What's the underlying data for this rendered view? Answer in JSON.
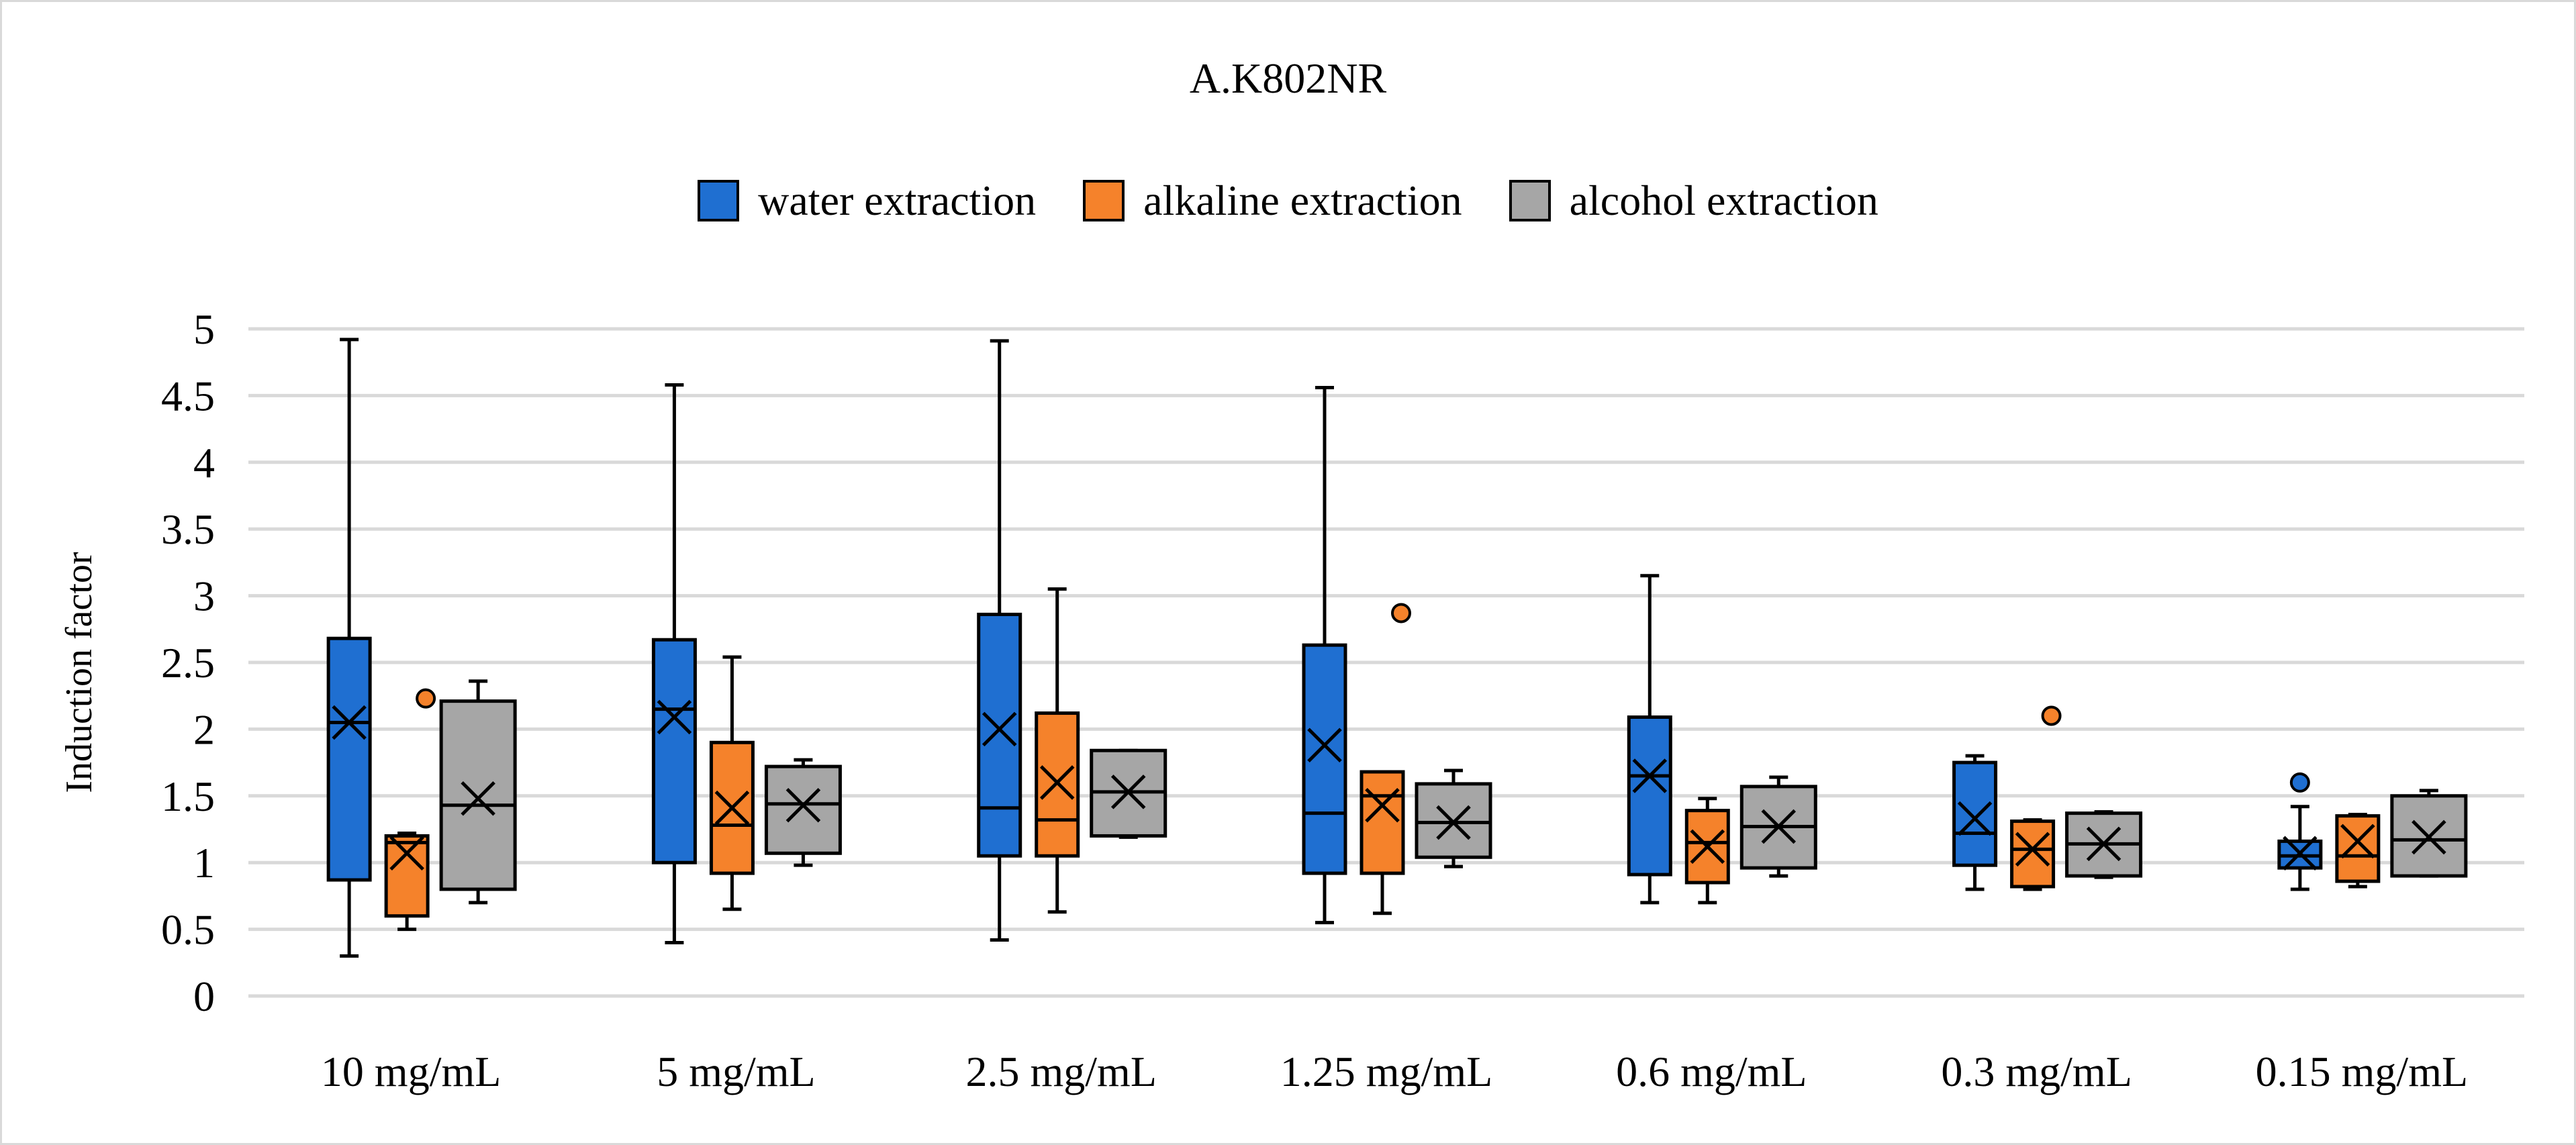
{
  "chart_data": {
    "type": "boxplot",
    "title": "A.K802NR",
    "xlabel": "",
    "ylabel": "Induction factor",
    "ylim": [
      0,
      5
    ],
    "yticks": [
      "0",
      "0.5",
      "1",
      "1.5",
      "2",
      "2.5",
      "3",
      "3.5",
      "4",
      "4.5",
      "5"
    ],
    "grid": true,
    "legend_position": "top-center",
    "categories": [
      "10 mg/mL",
      "5 mg/mL",
      "2.5 mg/mL",
      "1.25 mg/mL",
      "0.6 mg/mL",
      "0.3 mg/mL",
      "0.15 mg/mL"
    ],
    "series": [
      {
        "name": "water extraction",
        "color": "#1f6fd1",
        "boxes": [
          {
            "min": 0.3,
            "q1": 0.87,
            "median": 2.05,
            "q3": 2.68,
            "max": 4.92,
            "mean": 2.05,
            "outliers": []
          },
          {
            "min": 0.4,
            "q1": 1.0,
            "median": 2.15,
            "q3": 2.67,
            "max": 4.58,
            "mean": 2.09,
            "outliers": []
          },
          {
            "min": 0.42,
            "q1": 1.05,
            "median": 1.41,
            "q3": 2.86,
            "max": 4.91,
            "mean": 2.0,
            "outliers": []
          },
          {
            "min": 0.55,
            "q1": 0.92,
            "median": 1.37,
            "q3": 2.63,
            "max": 4.56,
            "mean": 1.88,
            "outliers": []
          },
          {
            "min": 0.7,
            "q1": 0.91,
            "median": 1.65,
            "q3": 2.09,
            "max": 3.15,
            "mean": 1.65,
            "outliers": []
          },
          {
            "min": 0.8,
            "q1": 0.98,
            "median": 1.22,
            "q3": 1.75,
            "max": 1.8,
            "mean": 1.33,
            "outliers": []
          },
          {
            "min": 0.8,
            "q1": 0.96,
            "median": 1.05,
            "q3": 1.16,
            "max": 1.42,
            "mean": 1.07,
            "outliers": [
              1.6
            ]
          }
        ]
      },
      {
        "name": "alkaline extraction",
        "color": "#f5822b",
        "boxes": [
          {
            "min": 0.5,
            "q1": 0.6,
            "median": 1.15,
            "q3": 1.2,
            "max": 1.22,
            "mean": 1.07,
            "outliers": [
              2.23
            ]
          },
          {
            "min": 0.65,
            "q1": 0.92,
            "median": 1.28,
            "q3": 1.9,
            "max": 2.54,
            "mean": 1.41,
            "outliers": []
          },
          {
            "min": 0.63,
            "q1": 1.05,
            "median": 1.32,
            "q3": 2.12,
            "max": 3.05,
            "mean": 1.6,
            "outliers": []
          },
          {
            "min": 0.62,
            "q1": 0.92,
            "median": 1.5,
            "q3": 1.68,
            "max": 1.68,
            "mean": 1.43,
            "outliers": [
              2.87
            ]
          },
          {
            "min": 0.7,
            "q1": 0.85,
            "median": 1.15,
            "q3": 1.39,
            "max": 1.48,
            "mean": 1.12,
            "outliers": []
          },
          {
            "min": 0.8,
            "q1": 0.82,
            "median": 1.1,
            "q3": 1.31,
            "max": 1.32,
            "mean": 1.1,
            "outliers": [
              2.1
            ]
          },
          {
            "min": 0.82,
            "q1": 0.86,
            "median": 1.05,
            "q3": 1.35,
            "max": 1.36,
            "mean": 1.16,
            "outliers": []
          }
        ]
      },
      {
        "name": "alcohol extraction",
        "color": "#a6a6a6",
        "boxes": [
          {
            "min": 0.7,
            "q1": 0.8,
            "median": 1.43,
            "q3": 2.21,
            "max": 2.36,
            "mean": 1.48,
            "outliers": []
          },
          {
            "min": 0.98,
            "q1": 1.07,
            "median": 1.44,
            "q3": 1.72,
            "max": 1.77,
            "mean": 1.43,
            "outliers": []
          },
          {
            "min": 1.19,
            "q1": 1.2,
            "median": 1.53,
            "q3": 1.84,
            "max": 1.84,
            "mean": 1.53,
            "outliers": []
          },
          {
            "min": 0.97,
            "q1": 1.04,
            "median": 1.3,
            "q3": 1.59,
            "max": 1.69,
            "mean": 1.3,
            "outliers": []
          },
          {
            "min": 0.9,
            "q1": 0.96,
            "median": 1.27,
            "q3": 1.57,
            "max": 1.64,
            "mean": 1.27,
            "outliers": []
          },
          {
            "min": 0.89,
            "q1": 0.9,
            "median": 1.14,
            "q3": 1.37,
            "max": 1.38,
            "mean": 1.14,
            "outliers": []
          },
          {
            "min": 0.9,
            "q1": 0.9,
            "median": 1.17,
            "q3": 1.5,
            "max": 1.54,
            "mean": 1.19,
            "outliers": []
          }
        ]
      }
    ]
  }
}
